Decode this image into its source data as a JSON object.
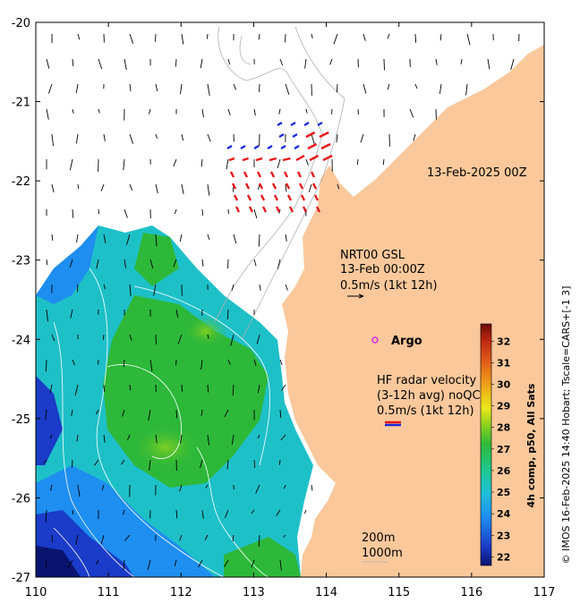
{
  "map": {
    "date_label": "13-Feb-2025 00Z",
    "x_ticks": [
      "110",
      "111",
      "112",
      "113",
      "114",
      "115",
      "116",
      "117"
    ],
    "y_ticks": [
      "-20",
      "-21",
      "-22",
      "-23",
      "-24",
      "-25",
      "-26",
      "-27"
    ],
    "lon_range": [
      110,
      117
    ],
    "lat_range": [
      -27,
      -20
    ],
    "gsl": {
      "line1": "NRT00 GSL",
      "line2": "13-Feb 00:00Z",
      "line3": "0.5m/s (1kt 12h)"
    },
    "argo": {
      "label": "Argo",
      "lon": 114.68,
      "lat": -24.0
    },
    "hf_radar": {
      "line1": "HF radar velocity",
      "line2": "(3-12h avg) noQC",
      "line3": "0.5m/s (1kt 12h)"
    },
    "contours": {
      "line1": "200m",
      "line2": "1000m"
    },
    "credit": "© IMOS 16-Feb-2025 14:40 Hobart; Tscale=CARS+[-1 3]",
    "colors": {
      "land": "#fac89b",
      "hf_red": "#e8161a",
      "hf_blue": "#1a2cd8",
      "argo": "#e030e0"
    }
  },
  "colorbar": {
    "title": "4h comp, p50, All Sats",
    "ticks": [
      "22",
      "23",
      "24",
      "25",
      "26",
      "27",
      "28",
      "29",
      "30",
      "31",
      "32"
    ],
    "range": [
      21.6,
      32.8
    ]
  }
}
